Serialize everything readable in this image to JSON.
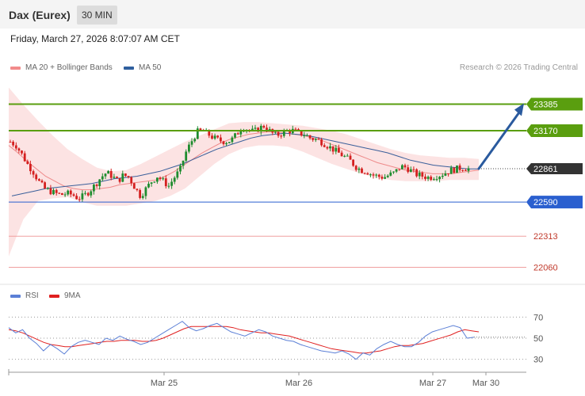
{
  "header": {
    "title": "Dax (Eurex)",
    "interval": "30 MIN",
    "timestamp": "Friday, March 27, 2026 8:07:07 AM CET"
  },
  "legend": {
    "ma20": {
      "label": "MA 20 + Bollinger Bands",
      "color": "#f28b8b"
    },
    "ma50": {
      "label": "MA 50",
      "color": "#2f5f9e"
    },
    "copyright": "Research © 2026 Trading Central"
  },
  "rsi_legend": {
    "rsi": {
      "label": "RSI",
      "color": "#5b7fd6"
    },
    "ma9": {
      "label": "9MA",
      "color": "#e02020"
    }
  },
  "chart_data": [
    {
      "type": "candlestick",
      "title": "Dax (Eurex)",
      "ylim": [
        21980,
        23620
      ],
      "x_labels": [
        "Mar 25",
        "Mar 26",
        "Mar 27",
        "Mar 30"
      ],
      "last_price": 22861,
      "levels": [
        {
          "value": 23385,
          "label": "23385",
          "color": "#5a9e0f",
          "kind": "resistance"
        },
        {
          "value": 23170,
          "label": "23170",
          "color": "#5a9e0f",
          "kind": "resistance"
        },
        {
          "value": 22861,
          "label": "22861",
          "color": "#333333",
          "kind": "last"
        },
        {
          "value": 22590,
          "label": "22590",
          "color": "#2a5fcf",
          "kind": "support"
        },
        {
          "value": 22313,
          "label": "22313",
          "color": "#c0392b",
          "kind": "support"
        },
        {
          "value": 22060,
          "label": "22060",
          "color": "#c0392b",
          "kind": "support"
        }
      ],
      "projection": {
        "from": 22861,
        "to": 23385,
        "color": "#2a5a9e"
      },
      "close_path": [
        23080,
        23050,
        22980,
        22900,
        22840,
        22760,
        22700,
        22680,
        22660,
        22650,
        22660,
        22650,
        22620,
        22640,
        22680,
        22730,
        22790,
        22830,
        22800,
        22760,
        22810,
        22790,
        22710,
        22640,
        22700,
        22760,
        22800,
        22760,
        22720,
        22790,
        22850,
        22990,
        23080,
        23160,
        23170,
        23140,
        23110,
        23090,
        23080,
        23090,
        23140,
        23200,
        23180,
        23160,
        23190,
        23210,
        23160,
        23130,
        23150,
        23170,
        23170,
        23150,
        23140,
        23110,
        23100,
        23080,
        23050,
        23020,
        22990,
        22960,
        22930,
        22880,
        22850,
        22840,
        22810,
        22800,
        22790,
        22810,
        22830,
        22880,
        22870,
        22840,
        22810,
        22800,
        22790,
        22800,
        22810,
        22830,
        22850,
        22860,
        22870,
        22861
      ],
      "ma20_path": [
        23050,
        22990,
        22920,
        22860,
        22800,
        22760,
        22720,
        22700,
        22690,
        22690,
        22700,
        22710,
        22730,
        22740,
        22750,
        22760,
        22770,
        22800,
        22840,
        22890,
        22940,
        22990,
        23030,
        23070,
        23100,
        23120,
        23140,
        23150,
        23160,
        23160,
        23150,
        23140,
        23130,
        23110,
        23090,
        23060,
        23030,
        23000,
        22970,
        22940,
        22910,
        22890,
        22870,
        22850,
        22840,
        22830,
        22820,
        22820,
        22820,
        22830,
        22840,
        22850
      ],
      "ma50_path": [
        22640,
        22660,
        22680,
        22700,
        22710,
        22720,
        22730,
        22740,
        22760,
        22780,
        22790,
        22800,
        22820,
        22840,
        22870,
        22900,
        22940,
        22980,
        23020,
        23050,
        23080,
        23110,
        23130,
        23140,
        23150,
        23140,
        23130,
        23110,
        23090,
        23070,
        23050,
        23030,
        23010,
        22990,
        22960,
        22930,
        22910,
        22890,
        22880,
        22870,
        22860,
        22860
      ],
      "band_upper": [
        23520,
        23380,
        23250,
        23130,
        23020,
        22940,
        22870,
        22840,
        22850,
        22900,
        22960,
        23020,
        23080,
        23130,
        23180,
        23230,
        23240,
        23240,
        23230,
        23220,
        23210,
        23190,
        23170,
        23140,
        23100,
        23060,
        23020,
        22990,
        22970,
        22960,
        22950,
        22950,
        22940
      ],
      "band_lower": [
        22150,
        22450,
        22600,
        22620,
        22630,
        22590,
        22560,
        22560,
        22560,
        22580,
        22600,
        22640,
        22700,
        22800,
        22900,
        22980,
        23030,
        23050,
        23050,
        23040,
        23000,
        22950,
        22900,
        22860,
        22820,
        22790,
        22770,
        22760,
        22760,
        22760,
        22770,
        22770,
        22770
      ]
    },
    {
      "type": "line",
      "title": "RSI",
      "ylim": [
        20,
        80
      ],
      "y_ticks": [
        70,
        50,
        30
      ],
      "series": [
        {
          "name": "RSI",
          "color": "#5b7fd6",
          "values": [
            60,
            55,
            58,
            50,
            45,
            38,
            44,
            40,
            35,
            42,
            46,
            48,
            46,
            44,
            50,
            48,
            52,
            49,
            47,
            44,
            46,
            50,
            54,
            58,
            62,
            66,
            60,
            57,
            59,
            62,
            64,
            60,
            56,
            54,
            52,
            55,
            58,
            56,
            52,
            50,
            48,
            47,
            44,
            42,
            40,
            38,
            37,
            36,
            38,
            35,
            30,
            36,
            34,
            40,
            44,
            47,
            44,
            42,
            42,
            46,
            52,
            56,
            58,
            60,
            62,
            60,
            50,
            51
          ]
        },
        {
          "name": "9MA",
          "color": "#e02020",
          "values": [
            58,
            57,
            55,
            52,
            49,
            46,
            44,
            43,
            42,
            42,
            43,
            44,
            45,
            46,
            47,
            47,
            48,
            48,
            48,
            47,
            47,
            48,
            50,
            53,
            56,
            59,
            61,
            61,
            61,
            61,
            61,
            61,
            60,
            58,
            57,
            56,
            55,
            55,
            54,
            53,
            52,
            50,
            48,
            46,
            44,
            42,
            40,
            39,
            38,
            37,
            36,
            36,
            37,
            38,
            40,
            42,
            43,
            43,
            44,
            45,
            47,
            49,
            51,
            53,
            56,
            58,
            57,
            56
          ]
        }
      ]
    }
  ]
}
